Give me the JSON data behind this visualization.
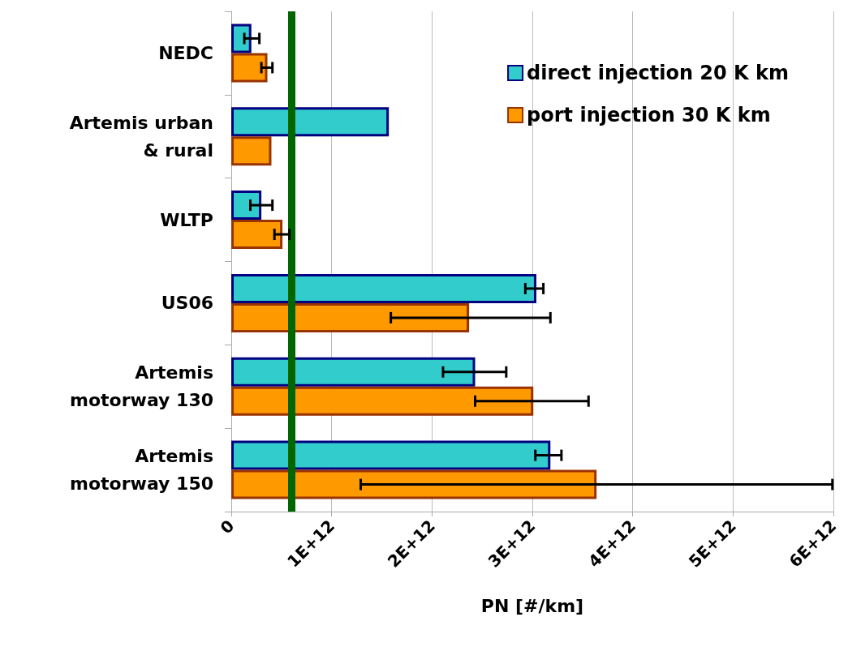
{
  "chart_data": {
    "type": "bar",
    "orientation": "horizontal",
    "xlabel": "PN [#/km]",
    "categories": [
      "NEDC",
      "Artemis urban\n& rural",
      "WLTP",
      "US06",
      "Artemis\nmotorway 130",
      "Artemis\nmotorway 150"
    ],
    "series": [
      {
        "name": "direct injection 20 K km",
        "color": "#33cccc",
        "values": [
          200000000000.0,
          1570000000000.0,
          300000000000.0,
          3040000000000.0,
          2430000000000.0,
          3180000000000.0
        ],
        "errors": [
          [
            130000000000.0,
            280000000000.0
          ],
          null,
          [
            190000000000.0,
            410000000000.0
          ],
          [
            2930000000000.0,
            3110000000000.0
          ],
          [
            2110000000000.0,
            2740000000000.0
          ],
          [
            3030000000000.0,
            3290000000000.0
          ]
        ]
      },
      {
        "name": "port injection 30 K km",
        "color": "#ff9900",
        "values": [
          360000000000.0,
          400000000000.0,
          510000000000.0,
          2370000000000.0,
          3010000000000.0,
          3640000000000.0
        ],
        "errors": [
          [
            300000000000.0,
            410000000000.0
          ],
          null,
          [
            430000000000.0,
            580000000000.0
          ],
          [
            1590000000000.0,
            3180000000000.0
          ],
          [
            2430000000000.0,
            3560000000000.0
          ],
          [
            1290000000000.0,
            5990000000000.0
          ]
        ]
      }
    ],
    "xlim": [
      0,
      6000000000000.0
    ],
    "xticks": [
      {
        "value": 0,
        "label": "0"
      },
      {
        "value": 1000000000000.0,
        "label": "1E+12"
      },
      {
        "value": 2000000000000.0,
        "label": "2E+12"
      },
      {
        "value": 3000000000000.0,
        "label": "3E+12"
      },
      {
        "value": 4000000000000.0,
        "label": "4E+12"
      },
      {
        "value": 5000000000000.0,
        "label": "5E+12"
      },
      {
        "value": 6000000000000.0,
        "label": "6E+12"
      }
    ],
    "ref_lines": [
      {
        "axis": "x",
        "value": 600000000000.0,
        "color": "#006600"
      }
    ],
    "grid": "x",
    "legend": "top right"
  }
}
